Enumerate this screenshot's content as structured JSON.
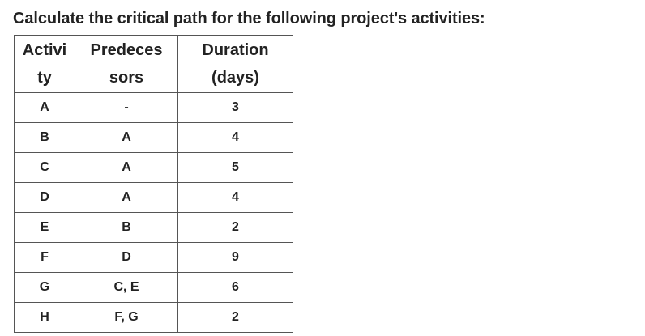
{
  "question": {
    "title": "Calculate the critical path for the following project's activities:"
  },
  "table": {
    "headers": [
      {
        "line1": "Activi",
        "line2": "ty"
      },
      {
        "line1": "Predeces",
        "line2": "sors"
      },
      {
        "line1": "Duration",
        "line2": "(days)"
      }
    ],
    "rows": [
      {
        "activity": "A",
        "predecessors": "-",
        "duration": "3"
      },
      {
        "activity": "B",
        "predecessors": "A",
        "duration": "4"
      },
      {
        "activity": "C",
        "predecessors": "A",
        "duration": "5"
      },
      {
        "activity": "D",
        "predecessors": "A",
        "duration": "4"
      },
      {
        "activity": "E",
        "predecessors": "B",
        "duration": "2"
      },
      {
        "activity": "F",
        "predecessors": "D",
        "duration": "9"
      },
      {
        "activity": "G",
        "predecessors": "C, E",
        "duration": "6"
      },
      {
        "activity": "H",
        "predecessors": "F, G",
        "duration": "2"
      }
    ]
  }
}
